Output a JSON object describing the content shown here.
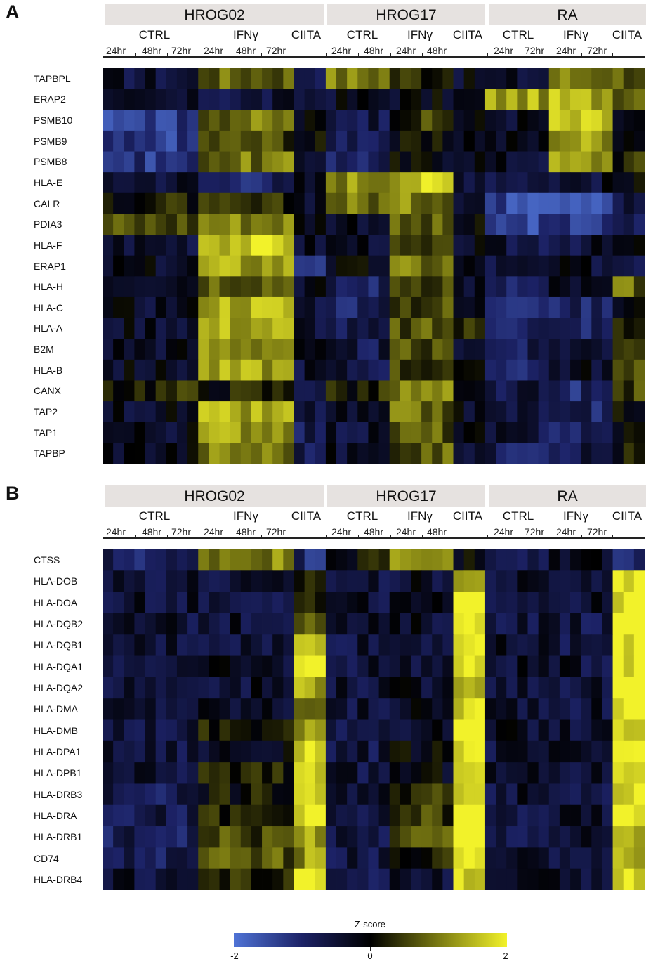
{
  "panels": [
    {
      "letter": "A",
      "groups": [
        "HROG02",
        "HROG17",
        "RA"
      ],
      "conditions": [
        "CTRL",
        "IFNγ",
        "CIITA",
        "CTRL",
        "IFNγ",
        "CIITA",
        "CTRL",
        "IFNγ",
        "CIITA"
      ],
      "timepoints": [
        "24hr",
        "48hr",
        "72hr",
        "24hr",
        "48hr",
        "72hr",
        "24hr",
        "48hr",
        "24hr",
        "48hr",
        "24hr",
        "72hr",
        "24hr",
        "72hr"
      ],
      "genes": [
        "TAPBPL",
        "ERAP2",
        "PSMB10",
        "PSMB9",
        "PSMB8",
        "HLA-E",
        "CALR",
        "PDIA3",
        "HLA-F",
        "ERAP1",
        "HLA-H",
        "HLA-C",
        "HLA-A",
        "B2M",
        "HLA-B",
        "CANX",
        "TAP2",
        "TAP1",
        "TAPBP"
      ]
    },
    {
      "letter": "B",
      "groups": [
        "HROG02",
        "HROG17",
        "RA"
      ],
      "conditions": [
        "CTRL",
        "IFNγ",
        "CIITA",
        "CTRL",
        "IFNγ",
        "CIITA",
        "CTRL",
        "IFNγ",
        "CIITA"
      ],
      "timepoints": [
        "24hr",
        "48hr",
        "72hr",
        "24hr",
        "48hr",
        "72hr",
        "24hr",
        "48hr",
        "24hr",
        "48hr",
        "24hr",
        "72hr",
        "24hr",
        "72hr"
      ],
      "genes": [
        "CTSS",
        "HLA-DOB",
        "HLA-DOA",
        "HLA-DQB2",
        "HLA-DQB1",
        "HLA-DQA1",
        "HLA-DQA2",
        "HLA-DMA",
        "HLA-DMB",
        "HLA-DPA1",
        "HLA-DPB1",
        "HLA-DRB3",
        "HLA-DRA",
        "HLA-DRB1",
        "CD74",
        "HLA-DRB4"
      ]
    }
  ],
  "legend": {
    "title": "Z-score",
    "min_label": "-2",
    "mid_label": "0",
    "max_label": "2"
  },
  "chart_data": [
    {
      "type": "heatmap",
      "title": "",
      "color_scale": {
        "min": -2,
        "max": 2,
        "colors": [
          "#4f73d6",
          "#1c2266",
          "#000000",
          "#7a7a12",
          "#f2f22a"
        ]
      },
      "rows": [
        "TAPBPL",
        "ERAP2",
        "PSMB10",
        "PSMB9",
        "PSMB8",
        "HLA-E",
        "CALR",
        "PDIA3",
        "HLA-F",
        "ERAP1",
        "HLA-H",
        "HLA-C",
        "HLA-A",
        "B2M",
        "HLA-B",
        "CANX",
        "TAP2",
        "TAP1",
        "TAPBP"
      ],
      "column_groups": [
        {
          "name": "HROG02",
          "conditions": [
            {
              "name": "CTRL",
              "columns": 9
            },
            {
              "name": "IFNγ",
              "columns": 9
            },
            {
              "name": "CIITA",
              "columns": 3
            }
          ]
        },
        {
          "name": "HROG17",
          "conditions": [
            {
              "name": "CTRL",
              "columns": 6
            },
            {
              "name": "IFNγ",
              "columns": 6
            },
            {
              "name": "CIITA",
              "columns": 3
            }
          ]
        },
        {
          "name": "RA",
          "conditions": [
            {
              "name": "CTRL",
              "columns": 6
            },
            {
              "name": "IFNγ",
              "columns": 6
            },
            {
              "name": "CIITA",
              "columns": 3
            }
          ]
        }
      ],
      "row_means": [
        [
          -0.5,
          0.8,
          -0.5,
          1.0,
          0.4,
          -0.3,
          -0.5,
          1.0,
          0.8
        ],
        [
          -0.6,
          -0.6,
          -0.5,
          -0.3,
          -0.2,
          -0.3,
          1.3,
          1.4,
          1.0
        ],
        [
          -1.3,
          0.9,
          -0.2,
          -0.6,
          0.4,
          -0.2,
          -0.3,
          1.5,
          -0.3
        ],
        [
          -1.3,
          0.6,
          -0.1,
          -0.7,
          -0.1,
          -0.1,
          -0.3,
          1.3,
          0.1
        ],
        [
          -1.2,
          0.9,
          -0.3,
          -0.9,
          -0.1,
          -0.1,
          -0.4,
          1.2,
          0.3
        ],
        [
          -0.4,
          -0.9,
          -0.4,
          1.2,
          1.6,
          -0.3,
          -0.5,
          -0.4,
          -0.2
        ],
        [
          0.2,
          0.2,
          -0.2,
          0.9,
          1.0,
          -0.3,
          -1.4,
          -1.4,
          -0.6
        ],
        [
          0.6,
          1.1,
          -0.1,
          -0.2,
          0.6,
          -0.2,
          -1.4,
          -1.3,
          -0.9
        ],
        [
          -0.4,
          1.7,
          -0.4,
          -0.3,
          0.2,
          -0.3,
          -0.6,
          -0.5,
          -0.3
        ],
        [
          -0.3,
          1.3,
          -1.1,
          -0.2,
          0.9,
          -0.3,
          -0.6,
          -0.4,
          -0.5
        ],
        [
          -0.1,
          0.9,
          -0.2,
          -0.9,
          0.7,
          -0.3,
          -1.0,
          -0.4,
          0.8
        ],
        [
          -0.3,
          1.5,
          -0.4,
          -0.9,
          0.6,
          -0.3,
          -0.9,
          -1.0,
          -0.2
        ],
        [
          -0.3,
          1.4,
          -0.4,
          -0.8,
          0.6,
          0.3,
          -0.8,
          -0.9,
          0.2
        ],
        [
          -0.3,
          1.2,
          -0.4,
          -0.7,
          0.5,
          -0.2,
          -0.9,
          -0.4,
          0.7
        ],
        [
          -0.3,
          1.3,
          -0.4,
          -0.6,
          0.5,
          -0.3,
          -0.9,
          -0.3,
          0.4
        ],
        [
          0.3,
          0.2,
          -0.5,
          0.2,
          1.0,
          -0.4,
          -0.7,
          -1.0,
          0.5
        ],
        [
          -0.3,
          1.3,
          -0.6,
          -0.5,
          0.8,
          -0.3,
          -0.6,
          -0.9,
          0.1
        ],
        [
          -0.3,
          1.3,
          -0.7,
          -0.5,
          0.7,
          -0.3,
          -0.6,
          -0.9,
          0.0
        ],
        [
          -0.2,
          1.0,
          -0.8,
          -0.4,
          0.7,
          -0.3,
          -0.8,
          -0.6,
          0.1
        ]
      ]
    },
    {
      "type": "heatmap",
      "title": "",
      "color_scale": {
        "min": -2,
        "max": 2,
        "colors": [
          "#4f73d6",
          "#1c2266",
          "#000000",
          "#7a7a12",
          "#f2f22a"
        ]
      },
      "rows": [
        "CTSS",
        "HLA-DOB",
        "HLA-DOA",
        "HLA-DQB2",
        "HLA-DQB1",
        "HLA-DQA1",
        "HLA-DQA2",
        "HLA-DMA",
        "HLA-DMB",
        "HLA-DPA1",
        "HLA-DPB1",
        "HLA-DRB3",
        "HLA-DRA",
        "HLA-DRB1",
        "CD74",
        "HLA-DRB4"
      ],
      "column_groups": [
        {
          "name": "HROG02",
          "conditions": [
            {
              "name": "CTRL",
              "columns": 9
            },
            {
              "name": "IFNγ",
              "columns": 9
            },
            {
              "name": "CIITA",
              "columns": 3
            }
          ]
        },
        {
          "name": "HROG17",
          "conditions": [
            {
              "name": "CTRL",
              "columns": 6
            },
            {
              "name": "IFNγ",
              "columns": 6
            },
            {
              "name": "CIITA",
              "columns": 3
            }
          ]
        },
        {
          "name": "RA",
          "conditions": [
            {
              "name": "CTRL",
              "columns": 6
            },
            {
              "name": "IFNγ",
              "columns": 6
            },
            {
              "name": "CIITA",
              "columns": 3
            }
          ]
        }
      ],
      "row_means": [
        [
          -0.9,
          1.1,
          -1.0,
          0.1,
          1.3,
          -0.1,
          -0.9,
          -0.2,
          -0.9
        ],
        [
          -0.5,
          -0.6,
          0.3,
          -0.6,
          -0.4,
          1.2,
          -0.5,
          -0.5,
          2.0
        ],
        [
          -0.5,
          -0.5,
          0.2,
          -0.5,
          -0.4,
          1.9,
          -0.4,
          -0.5,
          2.0
        ],
        [
          -0.5,
          -0.5,
          1.0,
          -0.5,
          -0.4,
          1.9,
          -0.5,
          -0.6,
          2.0
        ],
        [
          -0.5,
          -0.5,
          1.5,
          -0.5,
          -0.4,
          1.9,
          -0.5,
          -0.6,
          2.0
        ],
        [
          -0.5,
          -0.4,
          1.9,
          -0.5,
          -0.4,
          1.7,
          -0.4,
          -0.5,
          2.0
        ],
        [
          -0.5,
          -0.4,
          1.5,
          -0.5,
          -0.4,
          1.7,
          -0.5,
          -0.5,
          2.0
        ],
        [
          -0.5,
          -0.4,
          1.0,
          -0.6,
          -0.3,
          1.8,
          -0.4,
          -0.5,
          2.0
        ],
        [
          -0.6,
          0.2,
          1.1,
          -0.5,
          -0.3,
          2.0,
          -0.4,
          -0.5,
          1.9
        ],
        [
          -0.6,
          -0.3,
          1.9,
          -0.6,
          -0.2,
          2.0,
          -0.5,
          -0.5,
          2.0
        ],
        [
          -0.6,
          0.2,
          1.9,
          -0.6,
          -0.2,
          2.0,
          -0.5,
          -0.5,
          2.0
        ],
        [
          -0.7,
          0.1,
          1.8,
          -0.6,
          0.4,
          2.0,
          -0.5,
          -0.6,
          1.9
        ],
        [
          -0.7,
          0.2,
          1.7,
          -0.7,
          0.5,
          2.0,
          -0.6,
          -0.5,
          1.9
        ],
        [
          -0.8,
          0.6,
          1.4,
          -0.7,
          0.7,
          2.0,
          -0.6,
          -0.5,
          1.3
        ],
        [
          -0.8,
          0.7,
          1.2,
          -0.7,
          0.3,
          1.8,
          -0.6,
          -0.4,
          1.4
        ],
        [
          -0.5,
          0.3,
          2.0,
          -0.6,
          -0.5,
          1.9,
          -0.5,
          -0.5,
          2.0
        ]
      ]
    }
  ]
}
